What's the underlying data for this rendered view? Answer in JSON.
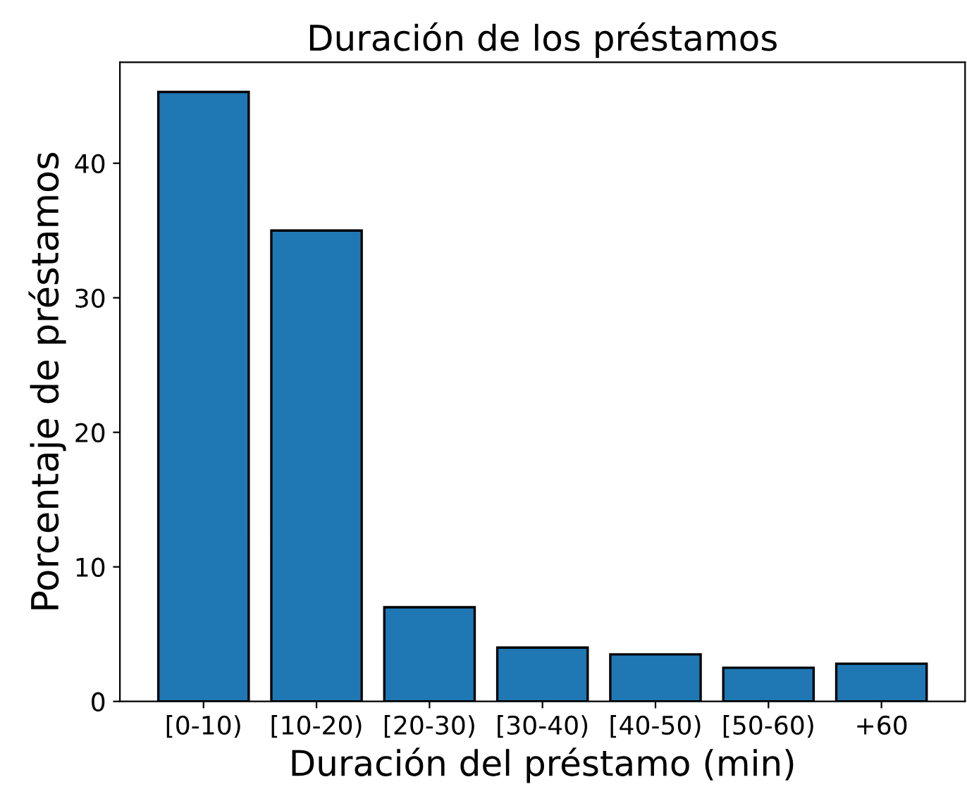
{
  "chart_data": {
    "type": "bar",
    "title": "Duración de los préstamos",
    "xlabel": "Duración del préstamo (min)",
    "ylabel": "Porcentaje de préstamos",
    "categories": [
      "[0-10)",
      "[10-20)",
      "[20-30)",
      "[30-40)",
      "[40-50)",
      "[50-60)",
      "+60"
    ],
    "values": [
      45.3,
      35.0,
      7.0,
      4.0,
      3.5,
      2.5,
      2.8
    ],
    "color": "#1f77b4",
    "ylim": [
      0,
      47.5
    ],
    "yticks": [
      0,
      10,
      20,
      30,
      40
    ],
    "grid": false,
    "legend": false
  }
}
